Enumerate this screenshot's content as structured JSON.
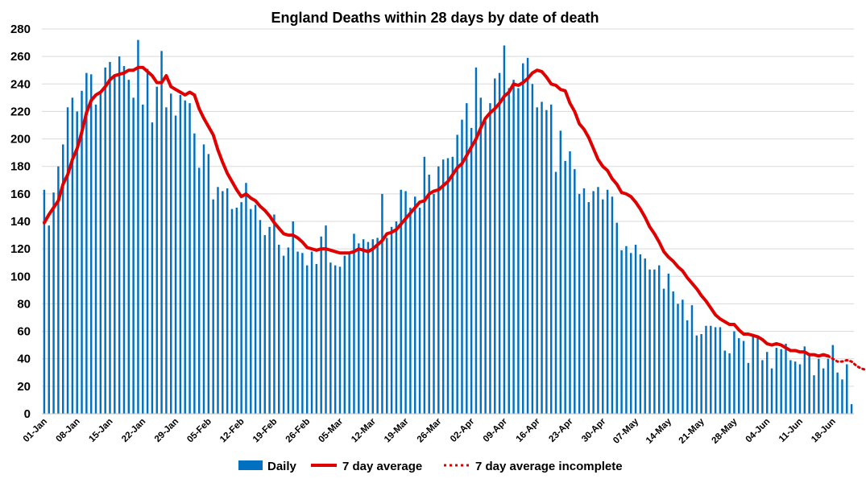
{
  "chart_data": {
    "type": "bar",
    "title": "England Deaths within 28 days by date of death",
    "xlabel": "",
    "ylabel": "",
    "ylim": [
      0,
      280
    ],
    "yticks": [
      0,
      20,
      40,
      60,
      80,
      100,
      120,
      140,
      160,
      180,
      200,
      220,
      240,
      260,
      280
    ],
    "grid": true,
    "legend_placement": "bottom",
    "colors": {
      "daily": "#0070c0",
      "average": "#e00000",
      "grid": "#d9d9d9"
    },
    "xtick_labels": [
      {
        "label": "01-Jan",
        "day": 1
      },
      {
        "label": "08-Jan",
        "day": 8
      },
      {
        "label": "15-Jan",
        "day": 15
      },
      {
        "label": "22-Jan",
        "day": 22
      },
      {
        "label": "29-Jan",
        "day": 29
      },
      {
        "label": "05-Feb",
        "day": 36
      },
      {
        "label": "12-Feb",
        "day": 43
      },
      {
        "label": "19-Feb",
        "day": 50
      },
      {
        "label": "26-Feb",
        "day": 57
      },
      {
        "label": "05-Mar",
        "day": 64
      },
      {
        "label": "12-Mar",
        "day": 71
      },
      {
        "label": "19-Mar",
        "day": 78
      },
      {
        "label": "26-Mar",
        "day": 85
      },
      {
        "label": "02-Apr",
        "day": 92
      },
      {
        "label": "09-Apr",
        "day": 99
      },
      {
        "label": "16-Apr",
        "day": 106
      },
      {
        "label": "23-Apr",
        "day": 113
      },
      {
        "label": "30-Apr",
        "day": 120
      },
      {
        "label": "07-May",
        "day": 127
      },
      {
        "label": "14-May",
        "day": 134
      },
      {
        "label": "21-May",
        "day": 141
      },
      {
        "label": "28-May",
        "day": 148
      },
      {
        "label": "04-Jun",
        "day": 155
      },
      {
        "label": "11-Jun",
        "day": 162
      },
      {
        "label": "18-Jun",
        "day": 169
      }
    ],
    "series": [
      {
        "name": "Daily",
        "values": [
          163,
          137,
          161,
          180,
          196,
          223,
          230,
          220,
          235,
          248,
          247,
          225,
          234,
          252,
          256,
          245,
          260,
          253,
          243,
          230,
          272,
          225,
          251,
          212,
          238,
          264,
          223,
          233,
          217,
          232,
          228,
          226,
          204,
          179,
          196,
          189,
          156,
          165,
          162,
          164,
          149,
          150,
          154,
          168,
          149,
          152,
          141,
          130,
          136,
          145,
          123,
          115,
          121,
          140,
          118,
          117,
          108,
          118,
          109,
          129,
          137,
          110,
          108,
          107,
          115,
          116,
          131,
          124,
          127,
          125,
          127,
          128,
          160,
          128,
          136,
          140,
          163,
          162,
          150,
          158,
          150,
          187,
          174,
          160,
          180,
          185,
          186,
          187,
          203,
          214,
          226,
          208,
          252,
          230,
          213,
          226,
          244,
          248,
          268,
          237,
          243,
          237,
          255,
          259,
          240,
          223,
          227,
          221,
          225,
          176,
          206,
          184,
          191,
          178,
          160,
          164,
          154,
          162,
          165,
          156,
          163,
          158,
          139,
          119,
          122,
          117,
          123,
          116,
          113,
          105,
          105,
          108,
          91,
          102,
          89,
          80,
          83,
          68,
          79,
          57,
          58,
          64,
          64,
          63,
          63,
          46,
          44,
          60,
          55,
          53,
          37,
          56,
          57,
          39,
          45,
          33,
          48,
          47,
          51,
          39,
          38,
          36,
          49,
          42,
          28,
          40,
          33,
          40,
          50,
          30,
          25,
          36,
          7
        ]
      },
      {
        "name": "7 day average",
        "values": [
          139,
          145,
          150,
          155,
          167,
          174,
          185,
          193,
          205,
          219,
          228,
          232,
          234,
          238,
          243,
          246,
          247,
          248,
          250,
          250,
          252,
          252,
          249,
          246,
          241,
          241,
          246,
          238,
          236,
          234,
          232,
          234,
          232,
          222,
          215,
          209,
          203,
          192,
          183,
          175,
          169,
          163,
          158,
          160,
          157,
          155,
          151,
          148,
          144,
          139,
          135,
          131,
          130,
          130,
          128,
          125,
          121,
          120,
          119,
          120,
          120,
          119,
          118,
          117,
          117,
          117,
          118,
          120,
          119,
          118,
          120,
          123,
          126,
          131,
          132,
          134,
          138,
          142,
          146,
          150,
          154,
          155,
          160,
          162,
          163,
          166,
          169,
          174,
          179,
          182,
          188,
          194,
          200,
          208,
          215,
          219,
          222,
          226,
          231,
          234,
          240,
          239,
          241,
          244,
          248,
          250,
          249,
          245,
          240,
          239,
          236,
          235,
          226,
          220,
          211,
          207,
          201,
          193,
          185,
          180,
          177,
          171,
          167,
          161,
          160,
          158,
          154,
          149,
          143,
          136,
          131,
          125,
          118,
          114,
          111,
          107,
          104,
          99,
          95,
          91,
          86,
          82,
          77,
          72,
          69,
          67,
          65,
          65,
          61,
          58,
          58,
          57,
          56,
          54,
          51,
          50,
          51,
          50,
          48,
          46,
          46,
          45,
          45,
          43,
          43,
          42,
          43,
          42
        ]
      },
      {
        "name": "7 day average incomplete",
        "start_day": 168,
        "values": [
          42,
          40,
          38,
          38,
          39,
          38,
          35,
          33,
          32
        ]
      }
    ]
  }
}
